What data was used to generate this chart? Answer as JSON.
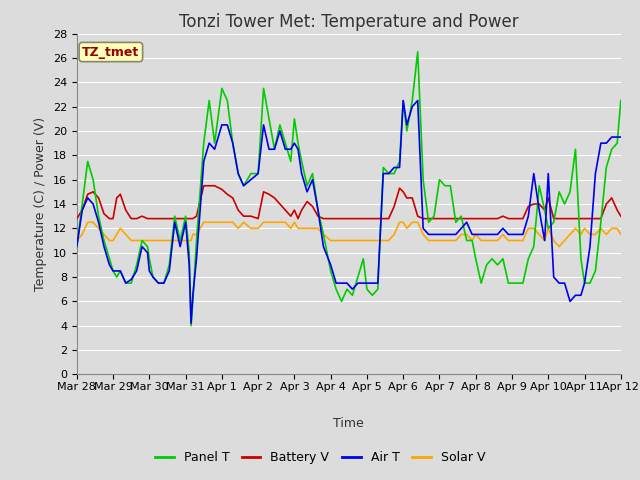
{
  "title": "Tonzi Tower Met: Temperature and Power",
  "xlabel": "Time",
  "ylabel": "Temperature (C) / Power (V)",
  "ylim": [
    0,
    28
  ],
  "yticks": [
    0,
    2,
    4,
    6,
    8,
    10,
    12,
    14,
    16,
    18,
    20,
    22,
    24,
    26,
    28
  ],
  "xlim": [
    0,
    15
  ],
  "xtick_labels": [
    "Mar 28",
    "Mar 29",
    "Mar 30",
    "Mar 31",
    "Apr 1",
    "Apr 2",
    "Apr 3",
    "Apr 4",
    "Apr 5",
    "Apr 6",
    "Apr 7",
    "Apr 8",
    "Apr 9",
    "Apr 10",
    "Apr 11",
    "Apr 12"
  ],
  "xtick_positions": [
    0,
    1,
    2,
    3,
    4,
    5,
    6,
    7,
    8,
    9,
    10,
    11,
    12,
    13,
    14,
    15
  ],
  "colors": {
    "panel_t": "#00CC00",
    "battery_v": "#CC0000",
    "air_t": "#0000EE",
    "solar_v": "#FFA500"
  },
  "legend_labels": [
    "Panel T",
    "Battery V",
    "Air T",
    "Solar V"
  ],
  "annotation_text": "TZ_tmet",
  "annotation_color": "#990000",
  "annotation_bg": "#FFFFBB",
  "bg_color": "#DCDCDC",
  "plot_bg": "#DCDCDC",
  "grid_color": "#FFFFFF",
  "font_size_title": 12,
  "font_size_labels": 9,
  "font_size_ticks": 8,
  "line_width": 1.2,
  "panel_t_x": [
    0.0,
    0.15,
    0.3,
    0.45,
    0.6,
    0.75,
    0.9,
    1.0,
    1.1,
    1.2,
    1.35,
    1.5,
    1.65,
    1.8,
    1.95,
    2.0,
    2.1,
    2.25,
    2.4,
    2.55,
    2.7,
    2.85,
    3.0,
    3.1,
    3.15,
    3.2,
    3.3,
    3.5,
    3.65,
    3.8,
    4.0,
    4.15,
    4.3,
    4.45,
    4.6,
    4.8,
    5.0,
    5.15,
    5.3,
    5.45,
    5.6,
    5.75,
    5.9,
    6.0,
    6.1,
    6.2,
    6.35,
    6.5,
    6.65,
    6.8,
    7.0,
    7.15,
    7.3,
    7.45,
    7.6,
    7.75,
    7.9,
    8.0,
    8.15,
    8.3,
    8.45,
    8.6,
    8.75,
    8.9,
    9.0,
    9.1,
    9.25,
    9.4,
    9.55,
    9.7,
    9.85,
    10.0,
    10.15,
    10.3,
    10.45,
    10.6,
    10.75,
    10.9,
    11.0,
    11.15,
    11.3,
    11.45,
    11.6,
    11.75,
    11.9,
    12.0,
    12.15,
    12.3,
    12.45,
    12.6,
    12.75,
    12.9,
    13.0,
    13.15,
    13.3,
    13.45,
    13.6,
    13.75,
    13.9,
    14.0,
    14.15,
    14.3,
    14.45,
    14.6,
    14.75,
    14.9,
    15.0
  ],
  "panel_t_y": [
    10.5,
    14.0,
    17.5,
    16.0,
    13.0,
    11.0,
    9.5,
    8.5,
    8.0,
    8.5,
    7.5,
    7.5,
    9.0,
    11.0,
    10.5,
    9.5,
    8.0,
    7.5,
    7.5,
    9.0,
    13.0,
    11.0,
    13.0,
    10.0,
    4.0,
    6.0,
    11.0,
    19.0,
    22.5,
    19.0,
    23.5,
    22.5,
    19.0,
    16.5,
    15.5,
    16.5,
    16.5,
    23.5,
    21.0,
    18.5,
    20.5,
    19.0,
    17.5,
    21.0,
    19.0,
    17.5,
    15.5,
    16.5,
    13.5,
    11.5,
    8.5,
    7.0,
    6.0,
    7.0,
    6.5,
    8.0,
    9.5,
    7.0,
    6.5,
    7.0,
    17.0,
    16.5,
    16.5,
    17.5,
    22.5,
    20.0,
    22.5,
    26.5,
    16.0,
    12.5,
    13.0,
    16.0,
    15.5,
    15.5,
    12.5,
    13.0,
    11.0,
    11.0,
    9.5,
    7.5,
    9.0,
    9.5,
    9.0,
    9.5,
    7.5,
    7.5,
    7.5,
    7.5,
    9.5,
    10.5,
    15.5,
    13.5,
    12.0,
    12.5,
    15.0,
    14.0,
    15.0,
    18.5,
    9.5,
    7.5,
    7.5,
    8.5,
    12.5,
    17.0,
    18.5,
    19.0,
    22.5
  ],
  "battery_v_x": [
    0.0,
    0.15,
    0.3,
    0.45,
    0.6,
    0.75,
    0.9,
    1.0,
    1.1,
    1.2,
    1.35,
    1.5,
    1.65,
    1.8,
    1.95,
    2.0,
    2.1,
    2.25,
    2.4,
    2.55,
    2.7,
    2.85,
    3.0,
    3.1,
    3.15,
    3.2,
    3.3,
    3.5,
    3.65,
    3.8,
    4.0,
    4.15,
    4.3,
    4.45,
    4.6,
    4.8,
    5.0,
    5.15,
    5.3,
    5.45,
    5.6,
    5.75,
    5.9,
    6.0,
    6.1,
    6.2,
    6.35,
    6.5,
    6.65,
    6.8,
    7.0,
    7.15,
    7.3,
    7.45,
    7.6,
    7.75,
    7.9,
    8.0,
    8.15,
    8.3,
    8.45,
    8.6,
    8.75,
    8.9,
    9.0,
    9.1,
    9.25,
    9.4,
    9.55,
    9.7,
    9.85,
    10.0,
    10.15,
    10.3,
    10.45,
    10.6,
    10.75,
    10.9,
    11.0,
    11.15,
    11.3,
    11.45,
    11.6,
    11.75,
    11.9,
    12.0,
    12.15,
    12.3,
    12.45,
    12.6,
    12.75,
    12.9,
    13.0,
    13.15,
    13.3,
    13.45,
    13.6,
    13.75,
    13.9,
    14.0,
    14.15,
    14.3,
    14.45,
    14.6,
    14.75,
    14.9,
    15.0
  ],
  "battery_v_y": [
    12.8,
    13.5,
    14.8,
    15.0,
    14.5,
    13.2,
    12.8,
    12.8,
    14.5,
    14.8,
    13.5,
    12.8,
    12.8,
    13.0,
    12.8,
    12.8,
    12.8,
    12.8,
    12.8,
    12.8,
    12.8,
    12.8,
    12.8,
    12.8,
    12.8,
    12.8,
    13.0,
    15.5,
    15.5,
    15.5,
    15.2,
    14.8,
    14.5,
    13.5,
    13.0,
    13.0,
    12.8,
    15.0,
    14.8,
    14.5,
    14.0,
    13.5,
    13.0,
    13.5,
    12.8,
    13.5,
    14.2,
    13.8,
    13.0,
    12.8,
    12.8,
    12.8,
    12.8,
    12.8,
    12.8,
    12.8,
    12.8,
    12.8,
    12.8,
    12.8,
    12.8,
    12.8,
    13.8,
    15.3,
    15.0,
    14.5,
    14.5,
    13.0,
    12.8,
    12.8,
    12.8,
    12.8,
    12.8,
    12.8,
    12.8,
    12.8,
    12.8,
    12.8,
    12.8,
    12.8,
    12.8,
    12.8,
    12.8,
    13.0,
    12.8,
    12.8,
    12.8,
    12.8,
    13.8,
    14.0,
    14.0,
    13.5,
    14.5,
    12.8,
    12.8,
    12.8,
    12.8,
    12.8,
    12.8,
    12.8,
    12.8,
    12.8,
    12.8,
    14.0,
    14.5,
    13.5,
    13.0
  ],
  "air_t_x": [
    0.0,
    0.15,
    0.3,
    0.45,
    0.6,
    0.75,
    0.9,
    1.0,
    1.1,
    1.2,
    1.35,
    1.5,
    1.65,
    1.8,
    1.95,
    2.0,
    2.1,
    2.25,
    2.4,
    2.55,
    2.7,
    2.85,
    3.0,
    3.1,
    3.15,
    3.2,
    3.3,
    3.5,
    3.65,
    3.8,
    4.0,
    4.15,
    4.3,
    4.45,
    4.6,
    4.8,
    5.0,
    5.15,
    5.3,
    5.45,
    5.6,
    5.75,
    5.9,
    6.0,
    6.1,
    6.2,
    6.35,
    6.5,
    6.65,
    6.8,
    7.0,
    7.15,
    7.3,
    7.45,
    7.6,
    7.75,
    7.9,
    8.0,
    8.15,
    8.3,
    8.45,
    8.6,
    8.75,
    8.9,
    9.0,
    9.1,
    9.25,
    9.4,
    9.55,
    9.7,
    9.85,
    10.0,
    10.15,
    10.3,
    10.45,
    10.6,
    10.75,
    10.9,
    11.0,
    11.15,
    11.3,
    11.45,
    11.6,
    11.75,
    11.9,
    12.0,
    12.15,
    12.3,
    12.45,
    12.6,
    12.75,
    12.9,
    13.0,
    13.15,
    13.3,
    13.45,
    13.6,
    13.75,
    13.9,
    14.0,
    14.15,
    14.3,
    14.45,
    14.6,
    14.75,
    14.9,
    15.0
  ],
  "air_t_y": [
    10.5,
    13.5,
    14.5,
    14.0,
    12.5,
    10.5,
    9.0,
    8.5,
    8.5,
    8.5,
    7.5,
    7.8,
    8.5,
    10.5,
    10.0,
    8.5,
    8.0,
    7.5,
    7.5,
    8.5,
    12.5,
    10.5,
    12.5,
    9.0,
    4.2,
    6.5,
    9.5,
    17.5,
    19.0,
    18.5,
    20.5,
    20.5,
    19.0,
    16.5,
    15.5,
    16.0,
    16.5,
    20.5,
    18.5,
    18.5,
    20.0,
    18.5,
    18.5,
    19.0,
    18.5,
    16.5,
    15.0,
    16.0,
    13.5,
    10.5,
    9.0,
    7.5,
    7.5,
    7.5,
    7.0,
    7.5,
    7.5,
    7.5,
    7.5,
    7.5,
    16.5,
    16.5,
    17.0,
    17.0,
    22.5,
    20.5,
    22.0,
    22.5,
    12.0,
    11.5,
    11.5,
    11.5,
    11.5,
    11.5,
    11.5,
    12.0,
    12.5,
    11.5,
    11.5,
    11.5,
    11.5,
    11.5,
    11.5,
    12.0,
    11.5,
    11.5,
    11.5,
    11.5,
    13.0,
    16.5,
    13.5,
    11.0,
    16.5,
    8.0,
    7.5,
    7.5,
    6.0,
    6.5,
    6.5,
    7.5,
    10.5,
    16.5,
    19.0,
    19.0,
    19.5,
    19.5,
    19.5
  ],
  "solar_v_x": [
    0.0,
    0.15,
    0.3,
    0.45,
    0.6,
    0.75,
    0.9,
    1.0,
    1.1,
    1.2,
    1.35,
    1.5,
    1.65,
    1.8,
    1.95,
    2.0,
    2.1,
    2.25,
    2.4,
    2.55,
    2.7,
    2.85,
    3.0,
    3.1,
    3.15,
    3.2,
    3.3,
    3.5,
    3.65,
    3.8,
    4.0,
    4.15,
    4.3,
    4.45,
    4.6,
    4.8,
    5.0,
    5.15,
    5.3,
    5.45,
    5.6,
    5.75,
    5.9,
    6.0,
    6.1,
    6.2,
    6.35,
    6.5,
    6.65,
    6.8,
    7.0,
    7.15,
    7.3,
    7.45,
    7.6,
    7.75,
    7.9,
    8.0,
    8.15,
    8.3,
    8.45,
    8.6,
    8.75,
    8.9,
    9.0,
    9.1,
    9.25,
    9.4,
    9.55,
    9.7,
    9.85,
    10.0,
    10.15,
    10.3,
    10.45,
    10.6,
    10.75,
    10.9,
    11.0,
    11.15,
    11.3,
    11.45,
    11.6,
    11.75,
    11.9,
    12.0,
    12.15,
    12.3,
    12.45,
    12.6,
    12.75,
    12.9,
    13.0,
    13.15,
    13.3,
    13.45,
    13.6,
    13.75,
    13.9,
    14.0,
    14.15,
    14.3,
    14.45,
    14.6,
    14.75,
    14.9,
    15.0
  ],
  "solar_v_y": [
    11.0,
    11.5,
    12.5,
    12.5,
    12.0,
    11.5,
    11.0,
    11.0,
    11.5,
    12.0,
    11.5,
    11.0,
    11.0,
    11.0,
    11.0,
    11.0,
    11.0,
    11.0,
    11.0,
    11.0,
    11.0,
    11.0,
    11.0,
    11.0,
    11.0,
    11.5,
    11.5,
    12.5,
    12.5,
    12.5,
    12.5,
    12.5,
    12.5,
    12.0,
    12.5,
    12.0,
    12.0,
    12.5,
    12.5,
    12.5,
    12.5,
    12.5,
    12.0,
    12.5,
    12.0,
    12.0,
    12.0,
    12.0,
    12.0,
    11.5,
    11.0,
    11.0,
    11.0,
    11.0,
    11.0,
    11.0,
    11.0,
    11.0,
    11.0,
    11.0,
    11.0,
    11.0,
    11.5,
    12.5,
    12.5,
    12.0,
    12.5,
    12.5,
    11.5,
    11.0,
    11.0,
    11.0,
    11.0,
    11.0,
    11.0,
    11.5,
    11.5,
    11.0,
    11.5,
    11.0,
    11.0,
    11.0,
    11.0,
    11.5,
    11.0,
    11.0,
    11.0,
    11.0,
    12.0,
    12.0,
    11.5,
    11.0,
    12.0,
    11.0,
    10.5,
    11.0,
    11.5,
    12.0,
    11.5,
    12.0,
    11.5,
    11.5,
    12.0,
    11.5,
    12.0,
    12.0,
    11.5
  ]
}
